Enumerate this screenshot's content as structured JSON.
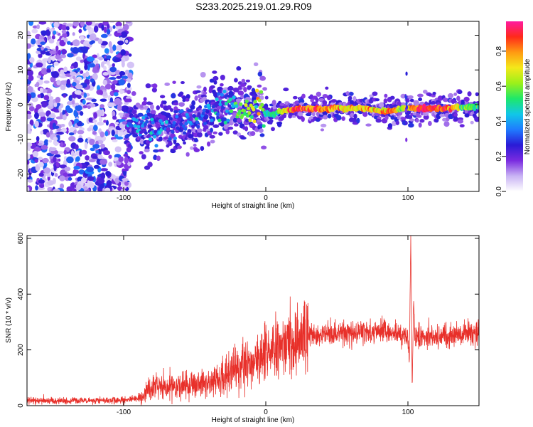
{
  "title": "S233.2025.219.01.29.R09",
  "colors": {
    "snr_line": "#e8302a",
    "frame": "#000000"
  },
  "chart_data": [
    {
      "type": "heatmap",
      "xlabel": "Height of straight line (km)",
      "ylabel": "Frequency (Hz)",
      "xlim": [
        -168,
        150
      ],
      "ylim": [
        -25,
        24
      ],
      "x_ticks": [
        -100,
        0,
        100
      ],
      "x_tick_labels": [
        "-100",
        "0",
        "100"
      ],
      "y_ticks": [
        20,
        10,
        0,
        -10,
        -20
      ],
      "y_tick_labels": [
        "20",
        "10",
        "0",
        "-10",
        "-20"
      ],
      "colorbar": {
        "label": "Normalized spectral amplitude",
        "range": [
          0,
          0.97
        ],
        "ticks": [
          0.0,
          0.2,
          0.4,
          0.6,
          0.8
        ],
        "tick_labels": [
          "0.0",
          "0.2",
          "0.4",
          "0.6",
          "0.8"
        ],
        "colors": [
          "#ffffff",
          "#c9b3f4",
          "#7a2be0",
          "#2a1bd6",
          "#1f7bff",
          "#11c7e8",
          "#1ee86a",
          "#9bf01a",
          "#f4e81a",
          "#ff9a12",
          "#ff2a1a",
          "#ff1aa0"
        ]
      },
      "ridge": {
        "x": [
          -98,
          -90,
          -80,
          -70,
          -60,
          -50,
          -40,
          -30,
          -20,
          -15,
          -10,
          -5,
          0,
          5,
          10,
          20,
          40,
          60,
          70,
          80,
          90,
          95,
          100,
          110,
          120,
          130,
          140,
          150
        ],
        "y": [
          -6,
          -5.5,
          -6.5,
          -6,
          -5,
          -4,
          -2,
          0,
          -1,
          -1.2,
          -0.5,
          0,
          -2.5,
          -3,
          -2,
          -1.2,
          -1.2,
          -1,
          -1.1,
          -1.8,
          -1.6,
          -1.2,
          -1,
          -1.1,
          -1.2,
          -1,
          -0.8,
          -0.6
        ],
        "amplitude": [
          0.35,
          0.4,
          0.35,
          0.3,
          0.3,
          0.3,
          0.35,
          0.4,
          0.55,
          0.6,
          0.7,
          0.75,
          0.5,
          0.45,
          0.6,
          0.9,
          0.85,
          0.7,
          0.75,
          0.8,
          0.85,
          0.6,
          0.75,
          0.95,
          0.9,
          0.85,
          0.6,
          0.5
        ]
      },
      "noise_region_x": [
        -168,
        -95
      ]
    },
    {
      "type": "line",
      "xlabel": "Height of straight line (km)",
      "ylabel": "SNR (10 * v/v)",
      "xlim": [
        -168,
        150
      ],
      "ylim": [
        0,
        610
      ],
      "x_ticks": [
        -100,
        0,
        100
      ],
      "x_tick_labels": [
        "-100",
        "0",
        "100"
      ],
      "y_ticks": [
        0,
        200,
        400,
        600
      ],
      "y_tick_labels": [
        "0",
        "200",
        "400",
        "600"
      ],
      "series": [
        {
          "x": [
            -168,
            -150,
            -130,
            -110,
            -100,
            -90,
            -85,
            -80,
            -70,
            -60,
            -50,
            -40,
            -30,
            -25,
            -20,
            -15,
            -12,
            -10,
            -5,
            0,
            10,
            20,
            30,
            40,
            50,
            60,
            70,
            80,
            90,
            95,
            100,
            101,
            102,
            103,
            104,
            105,
            110,
            120,
            130,
            140,
            150
          ],
          "y": [
            18,
            17,
            18,
            18,
            20,
            25,
            45,
            65,
            70,
            72,
            75,
            85,
            100,
            120,
            140,
            155,
            160,
            155,
            165,
            190,
            210,
            235,
            250,
            255,
            260,
            262,
            265,
            262,
            262,
            255,
            250,
            160,
            610,
            60,
            380,
            250,
            250,
            245,
            255,
            260,
            255
          ]
        }
      ]
    }
  ]
}
